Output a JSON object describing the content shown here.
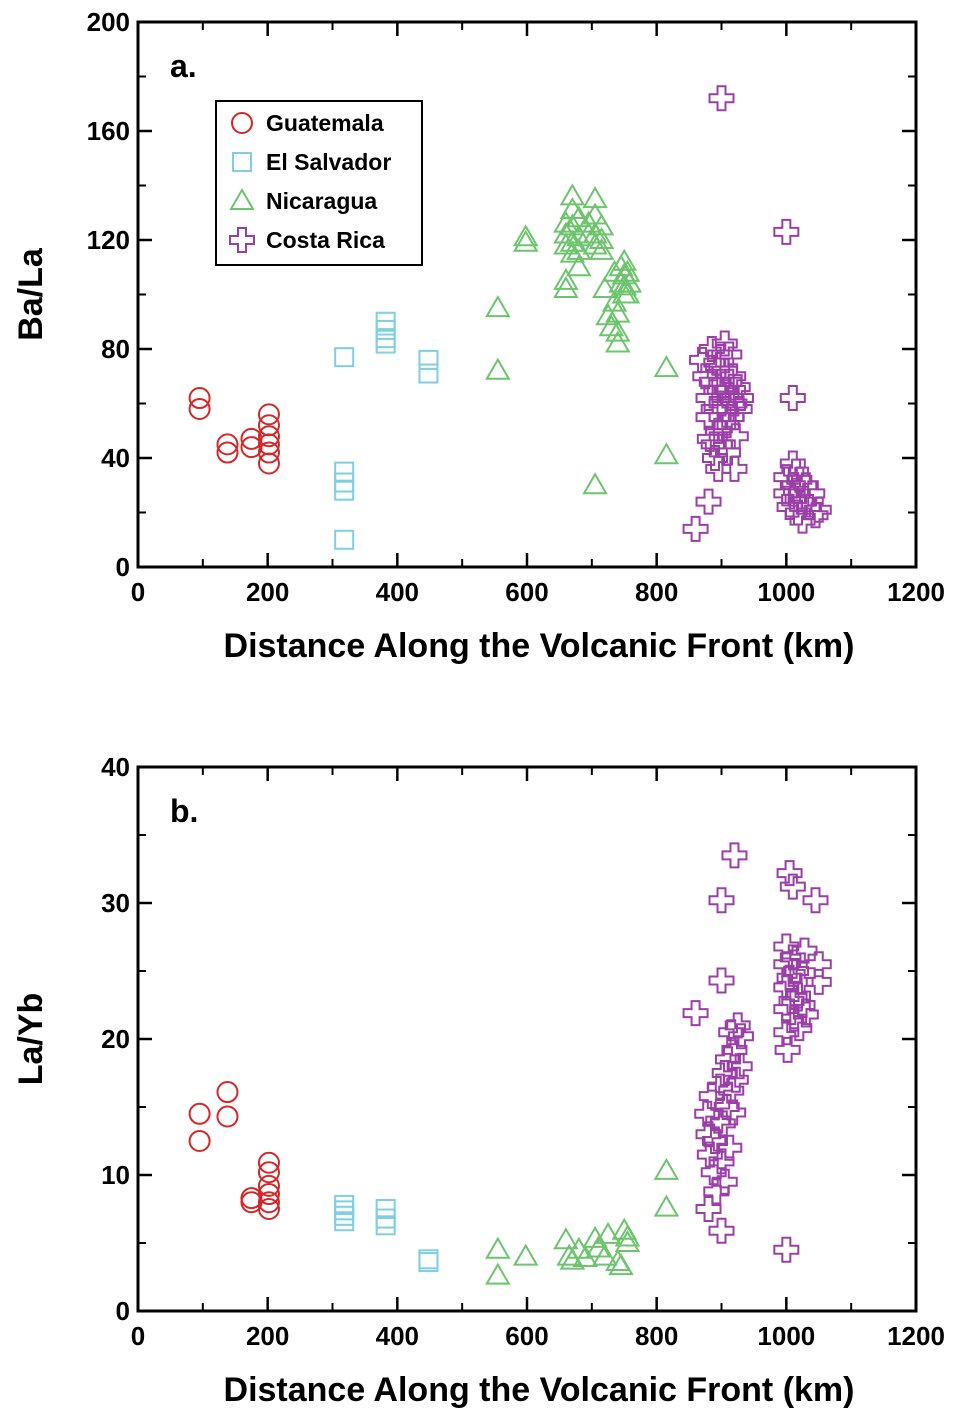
{
  "chart_data": [
    {
      "type": "scatter",
      "panel_label": "a.",
      "xlabel": "Distance Along the Volcanic Front (km)",
      "ylabel": "Ba/La",
      "xlim": [
        0,
        1200
      ],
      "ylim": [
        0,
        200
      ],
      "x_ticks": [
        "0",
        "200",
        "400",
        "600",
        "800",
        "1000",
        "1200"
      ],
      "y_ticks": [
        "0",
        "40",
        "80",
        "120",
        "160",
        "200"
      ],
      "grid": false,
      "legend_position": "top-left",
      "series": [
        {
          "name": "Guatemala",
          "marker": "circle",
          "color": "#d62728",
          "points": [
            [
              95,
              62
            ],
            [
              95,
              58
            ],
            [
              138,
              45
            ],
            [
              138,
              42
            ],
            [
              175,
              47
            ],
            [
              175,
              44
            ],
            [
              202,
              56
            ],
            [
              202,
              52
            ],
            [
              202,
              48
            ],
            [
              202,
              45
            ],
            [
              202,
              42
            ],
            [
              202,
              38
            ]
          ]
        },
        {
          "name": "El Salvador",
          "marker": "square",
          "color": "#7ecfe0",
          "points": [
            [
              318,
              77
            ],
            [
              318,
              35
            ],
            [
              318,
              31
            ],
            [
              318,
              28
            ],
            [
              318,
              10
            ],
            [
              382,
              90
            ],
            [
              382,
              87
            ],
            [
              382,
              84
            ],
            [
              382,
              82
            ],
            [
              448,
              76
            ],
            [
              448,
              71
            ]
          ]
        },
        {
          "name": "Nicaragua",
          "marker": "triangle",
          "color": "#6cc46c",
          "points": [
            [
              555,
              95
            ],
            [
              555,
              72
            ],
            [
              598,
              121
            ],
            [
              598,
              119
            ],
            [
              660,
              126
            ],
            [
              660,
              122
            ],
            [
              660,
              118
            ],
            [
              660,
              105
            ],
            [
              660,
              102
            ],
            [
              670,
              136
            ],
            [
              670,
              131
            ],
            [
              670,
              125
            ],
            [
              670,
              119
            ],
            [
              670,
              115
            ],
            [
              680,
              128
            ],
            [
              680,
              121
            ],
            [
              680,
              116
            ],
            [
              680,
              110
            ],
            [
              695,
              126
            ],
            [
              695,
              122
            ],
            [
              705,
              135
            ],
            [
              705,
              129
            ],
            [
              705,
              122
            ],
            [
              705,
              118
            ],
            [
              705,
              30
            ],
            [
              715,
              125
            ],
            [
              715,
              120
            ],
            [
              715,
              116
            ],
            [
              720,
              102
            ],
            [
              725,
              92
            ],
            [
              730,
              88
            ],
            [
              735,
              108
            ],
            [
              735,
              97
            ],
            [
              740,
              93
            ],
            [
              740,
              86
            ],
            [
              740,
              82
            ],
            [
              745,
              110
            ],
            [
              745,
              104
            ],
            [
              750,
              112
            ],
            [
              750,
              107
            ],
            [
              750,
              103
            ],
            [
              750,
              100
            ],
            [
              755,
              108
            ],
            [
              755,
              100
            ],
            [
              758,
              104
            ],
            [
              815,
              73
            ],
            [
              815,
              41
            ]
          ]
        },
        {
          "name": "Costa Rica",
          "marker": "cross",
          "color": "#9b3fa8",
          "points": [
            [
              900,
              172
            ],
            [
              1000,
              123
            ],
            [
              1010,
              62
            ],
            [
              860,
              14
            ],
            [
              880,
              24
            ],
            [
              870,
              76
            ],
            [
              875,
              70
            ],
            [
              880,
              62
            ],
            [
              880,
              55
            ],
            [
              882,
              47
            ],
            [
              885,
              80
            ],
            [
              885,
              68
            ],
            [
              888,
              58
            ],
            [
              888,
              45
            ],
            [
              890,
              40
            ],
            [
              892,
              75
            ],
            [
              892,
              65
            ],
            [
              895,
              50
            ],
            [
              895,
              36
            ],
            [
              898,
              78
            ],
            [
              900,
              68
            ],
            [
              900,
              60
            ],
            [
              900,
              55
            ],
            [
              902,
              45
            ],
            [
              905,
              82
            ],
            [
              905,
              72
            ],
            [
              905,
              58
            ],
            [
              908,
              65
            ],
            [
              908,
              52
            ],
            [
              910,
              42
            ],
            [
              912,
              78
            ],
            [
              912,
              68
            ],
            [
              915,
              62
            ],
            [
              915,
              55
            ],
            [
              918,
              70
            ],
            [
              920,
              60
            ],
            [
              922,
              48
            ],
            [
              925,
              66
            ],
            [
              928,
              58
            ],
            [
              930,
              62
            ],
            [
              920,
              36
            ],
            [
              1000,
              33
            ],
            [
              1000,
              27
            ],
            [
              1005,
              22
            ],
            [
              1010,
              38
            ],
            [
              1010,
              30
            ],
            [
              1012,
              25
            ],
            [
              1015,
              35
            ],
            [
              1015,
              28
            ],
            [
              1018,
              20
            ],
            [
              1020,
              32
            ],
            [
              1022,
              24
            ],
            [
              1025,
              17
            ],
            [
              1030,
              30
            ],
            [
              1035,
              22
            ],
            [
              1040,
              27
            ],
            [
              1045,
              19
            ],
            [
              1050,
              21
            ]
          ]
        }
      ]
    },
    {
      "type": "scatter",
      "panel_label": "b.",
      "xlabel": "Distance Along the Volcanic Front (km)",
      "ylabel": "La/Yb",
      "xlim": [
        0,
        1200
      ],
      "ylim": [
        0,
        40
      ],
      "x_ticks": [
        "0",
        "200",
        "400",
        "600",
        "800",
        "1000",
        "1200"
      ],
      "y_ticks": [
        "0",
        "10",
        "20",
        "30",
        "40"
      ],
      "grid": false,
      "series": [
        {
          "name": "Guatemala",
          "marker": "circle",
          "color": "#d62728",
          "points": [
            [
              95,
              14.5
            ],
            [
              95,
              12.5
            ],
            [
              138,
              16.1
            ],
            [
              138,
              14.3
            ],
            [
              175,
              8.3
            ],
            [
              175,
              8.0
            ],
            [
              202,
              10.9
            ],
            [
              202,
              10.2
            ],
            [
              202,
              9.2
            ],
            [
              202,
              8.6
            ],
            [
              202,
              8.0
            ],
            [
              202,
              7.5
            ]
          ]
        },
        {
          "name": "El Salvador",
          "marker": "square",
          "color": "#7ecfe0",
          "points": [
            [
              318,
              7.8
            ],
            [
              318,
              7.4
            ],
            [
              318,
              7.0
            ],
            [
              318,
              6.6
            ],
            [
              382,
              7.5
            ],
            [
              382,
              6.8
            ],
            [
              382,
              6.3
            ],
            [
              448,
              3.8
            ],
            [
              448,
              3.6
            ]
          ]
        },
        {
          "name": "Nicaragua",
          "marker": "triangle",
          "color": "#6cc46c",
          "points": [
            [
              555,
              4.5
            ],
            [
              555,
              2.6
            ],
            [
              598,
              4.0
            ],
            [
              660,
              5.2
            ],
            [
              665,
              4.0
            ],
            [
              670,
              3.7
            ],
            [
              680,
              4.5
            ],
            [
              690,
              3.9
            ],
            [
              705,
              5.3
            ],
            [
              710,
              4.6
            ],
            [
              720,
              4.0
            ],
            [
              725,
              5.6
            ],
            [
              740,
              3.6
            ],
            [
              745,
              3.3
            ],
            [
              750,
              5.9
            ],
            [
              755,
              5.4
            ],
            [
              755,
              5.0
            ],
            [
              815,
              10.3
            ],
            [
              815,
              7.6
            ]
          ]
        },
        {
          "name": "Costa Rica",
          "marker": "cross",
          "color": "#9b3fa8",
          "points": [
            [
              920,
              33.5
            ],
            [
              900,
              30.2
            ],
            [
              900,
              24.3
            ],
            [
              860,
              21.9
            ],
            [
              900,
              5.9
            ],
            [
              1000,
              4.5
            ],
            [
              880,
              7.5
            ],
            [
              878,
              14.5
            ],
            [
              880,
              13.0
            ],
            [
              882,
              11.5
            ],
            [
              885,
              15.8
            ],
            [
              888,
              10.2
            ],
            [
              890,
              12.5
            ],
            [
              892,
              8.8
            ],
            [
              895,
              14.0
            ],
            [
              898,
              16.5
            ],
            [
              900,
              11.0
            ],
            [
              902,
              13.8
            ],
            [
              905,
              17.5
            ],
            [
              905,
              9.5
            ],
            [
              908,
              15.0
            ],
            [
              910,
              18.5
            ],
            [
              912,
              12.0
            ],
            [
              915,
              20.5
            ],
            [
              915,
              16.2
            ],
            [
              918,
              14.6
            ],
            [
              920,
              19.2
            ],
            [
              922,
              17.0
            ],
            [
              925,
              21.0
            ],
            [
              928,
              18.0
            ],
            [
              930,
              20.2
            ],
            [
              1005,
              32.2
            ],
            [
              1010,
              31.2
            ],
            [
              1045,
              30.2
            ],
            [
              1000,
              26.8
            ],
            [
              1000,
              25.5
            ],
            [
              1000,
              23.8
            ],
            [
              1000,
              22.2
            ],
            [
              1000,
              20.5
            ],
            [
              1002,
              19.2
            ],
            [
              1005,
              24.5
            ],
            [
              1008,
              22.8
            ],
            [
              1010,
              26.0
            ],
            [
              1012,
              21.5
            ],
            [
              1015,
              25.0
            ],
            [
              1018,
              23.2
            ],
            [
              1020,
              20.8
            ],
            [
              1022,
              24.2
            ],
            [
              1025,
              22.5
            ],
            [
              1028,
              26.5
            ],
            [
              1030,
              21.8
            ],
            [
              1050,
              25.5
            ],
            [
              1050,
              24.2
            ]
          ]
        }
      ]
    }
  ]
}
